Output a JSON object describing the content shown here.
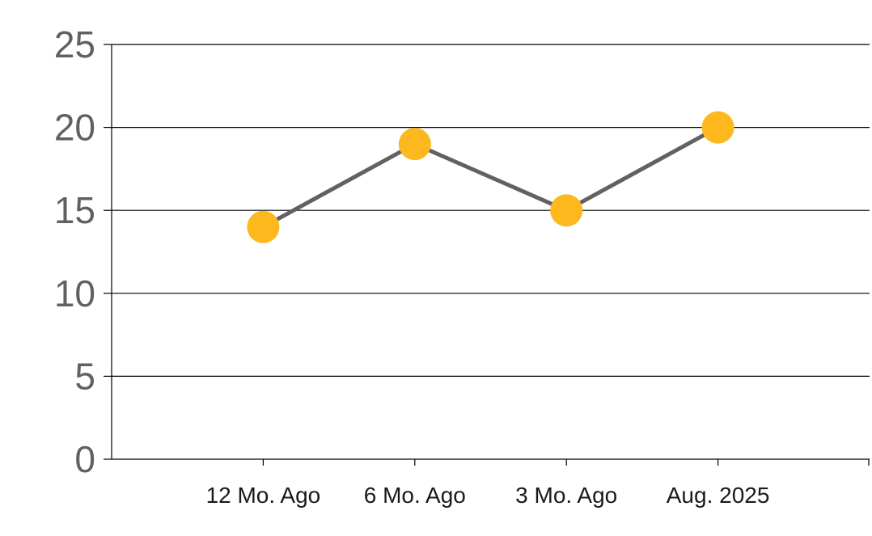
{
  "chart_data": {
    "type": "line",
    "title": "",
    "xlabel": "",
    "ylabel": "",
    "categories": [
      "12 Mo. Ago",
      "6 Mo. Ago",
      "3 Mo. Ago",
      "Aug. 2025"
    ],
    "series": [
      {
        "values": [
          14,
          19,
          15,
          20
        ]
      }
    ],
    "ylim": [
      0,
      25
    ],
    "y_ticks": [
      "0",
      "5",
      "10",
      "15",
      "20",
      "25"
    ],
    "grid": true,
    "legend": "none",
    "colors": {
      "line": "#616161",
      "marker": "#FDB81E",
      "grid": "#000000",
      "axis": "#000000",
      "y_tick_text": "#616161",
      "x_tick_text": "#1a1a1a"
    }
  }
}
